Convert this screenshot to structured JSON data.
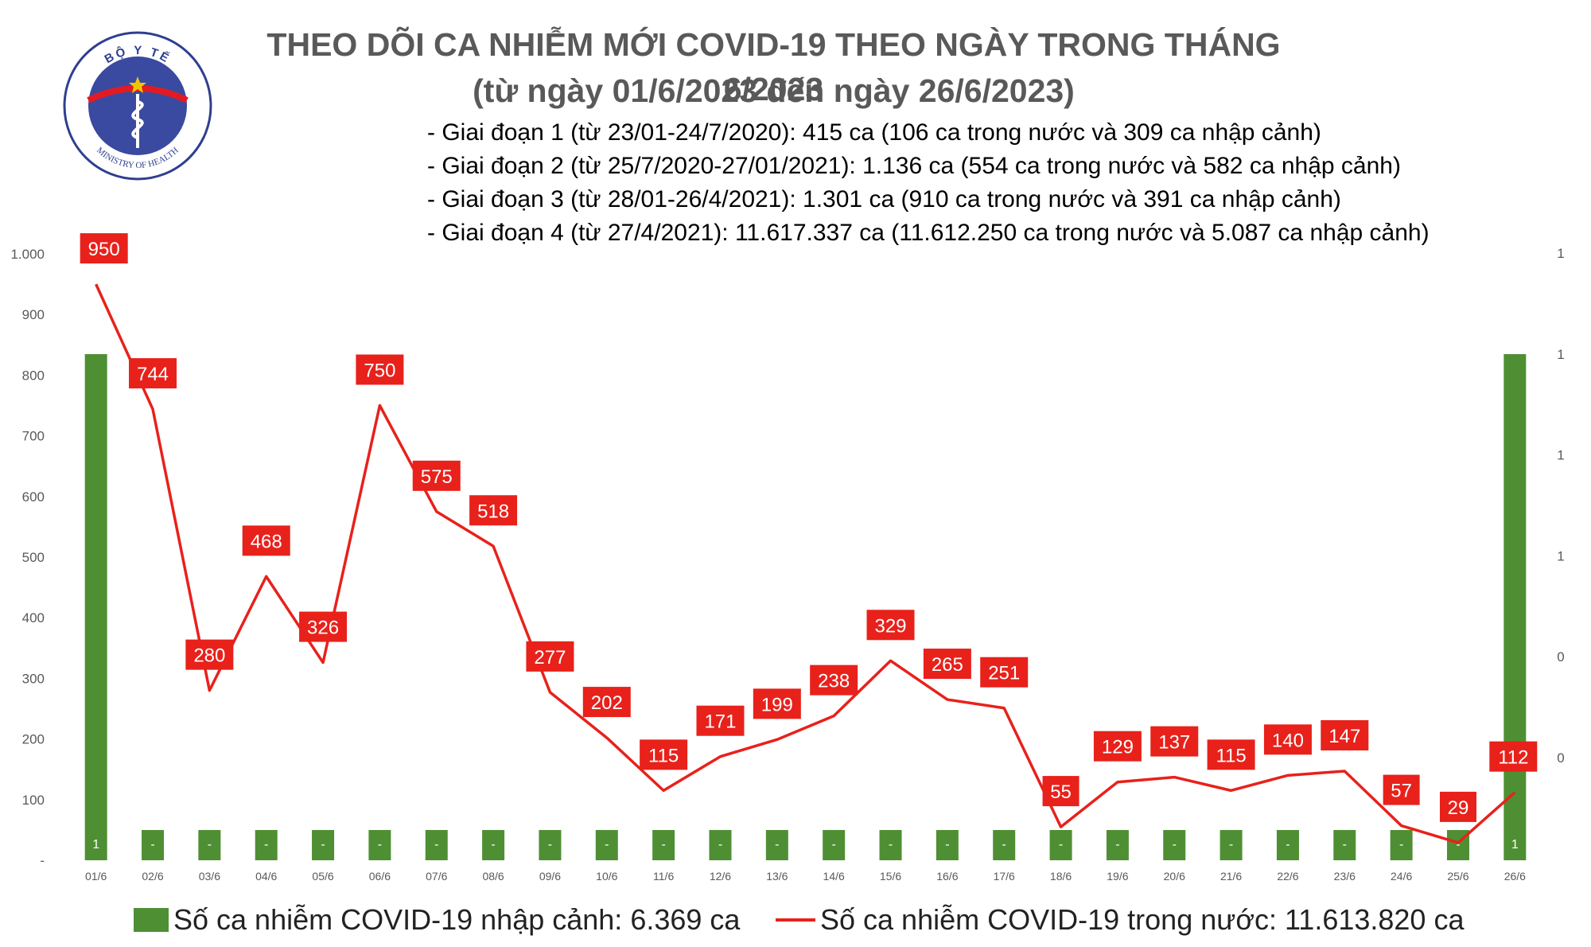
{
  "header": {
    "title": "THEO DÕI CA NHIỄM MỚI COVID-19 THEO NGÀY TRONG THÁNG 6/2023",
    "subtitle": "(từ ngày 01/6/2023 đến ngày 26/6/2023)",
    "stages": [
      "- Giai đoạn 1 (từ 23/01-24/7/2020): 415 ca (106 ca trong nước và 309 ca nhập cảnh)",
      "- Giai đoạn 2 (từ 25/7/2020-27/01/2021): 1.136 ca (554 ca trong nước và 582 ca nhập cảnh)",
      "- Giai đoạn 3 (từ 28/01-26/4/2021): 1.301 ca (910 ca trong nước và 391 ca nhập cảnh)",
      "- Giai đoạn 4 (từ 27/4/2021): 11.617.337 ca (11.612.250 ca trong nước và 5.087 ca nhập cảnh)"
    ]
  },
  "logo": {
    "top_text": "BỘ Y TẾ",
    "bottom_text": "MINISTRY OF HEALTH",
    "colors": {
      "ring": "#2e3f8f",
      "fill": "#3a4aa0",
      "star": "#f2c400",
      "accent": "#e21b23"
    }
  },
  "colors": {
    "bar": "#4e8f33",
    "line": "#e8211b",
    "label_bg": "#e8211b",
    "label_text": "#ffffff",
    "axis_text": "#595959",
    "grid": "#d9d9d9"
  },
  "chart_data": {
    "type": "bar+line",
    "categories": [
      "01/6",
      "02/6",
      "03/6",
      "04/6",
      "05/6",
      "06/6",
      "07/6",
      "08/6",
      "09/6",
      "10/6",
      "11/6",
      "12/6",
      "13/6",
      "14/6",
      "15/6",
      "16/6",
      "17/6",
      "18/6",
      "19/6",
      "20/6",
      "21/6",
      "22/6",
      "23/6",
      "24/6",
      "25/6",
      "26/6"
    ],
    "left_axis": {
      "ylim": [
        0,
        1000
      ],
      "tick_labels": [
        "-",
        "100",
        "200",
        "300",
        "400",
        "500",
        "600",
        "700",
        "800",
        "900",
        "1.000"
      ]
    },
    "right_axis": {
      "tick_labels": [
        "0",
        "0",
        "1",
        "1",
        "1",
        "1"
      ]
    },
    "series": [
      {
        "name": "Số ca nhiễm COVID-19 nhập cảnh: 6.369 ca",
        "type": "bar",
        "axis": "right",
        "values": [
          1,
          0,
          0,
          0,
          0,
          0,
          0,
          0,
          0,
          0,
          0,
          0,
          0,
          0,
          0,
          0,
          0,
          0,
          0,
          0,
          0,
          0,
          0,
          0,
          0,
          1
        ],
        "labels": [
          "1",
          "-",
          "-",
          "-",
          "-",
          "-",
          "-",
          "-",
          "-",
          "-",
          "-",
          "-",
          "-",
          "-",
          "-",
          "-",
          "-",
          "-",
          "-",
          "-",
          "-",
          "-",
          "-",
          "-",
          "-",
          "1"
        ]
      },
      {
        "name": "Số ca nhiễm COVID-19 trong nước: 11.613.820 ca",
        "type": "line",
        "axis": "left",
        "values": [
          950,
          744,
          280,
          468,
          326,
          750,
          575,
          518,
          277,
          202,
          115,
          171,
          199,
          238,
          329,
          265,
          251,
          55,
          129,
          137,
          115,
          140,
          147,
          57,
          29,
          112
        ]
      }
    ],
    "legend_position": "bottom",
    "grid": false
  }
}
